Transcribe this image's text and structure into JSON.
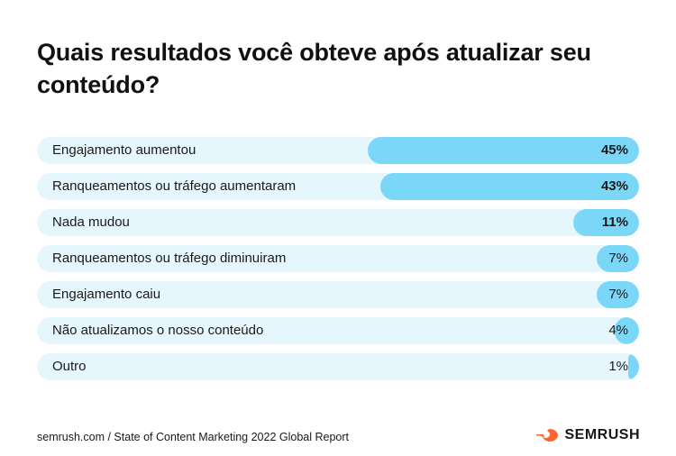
{
  "title": "Quais resultados você obteve após atualizar seu conteúdo?",
  "chart_data": {
    "type": "bar",
    "orientation": "horizontal",
    "title": "Quais resultados você obteve após atualizar seu conteúdo?",
    "categories": [
      "Engajamento aumentou",
      "Ranqueamentos ou tráfego aumentaram",
      "Nada mudou",
      "Ranqueamentos ou tráfego diminuiram",
      "Engajamento caiu",
      "Não atualizamos o nosso conteúdo",
      "Outro"
    ],
    "values": [
      45,
      43,
      11,
      7,
      7,
      4,
      1
    ],
    "value_labels": [
      "45%",
      "43%",
      "11%",
      "7%",
      "7%",
      "4%",
      "1%"
    ],
    "bold_value_labels": [
      true,
      true,
      true,
      false,
      false,
      false,
      false
    ],
    "xlim": [
      0,
      100
    ],
    "unit": "%",
    "grid": false,
    "bar_color": "#7ad7f8",
    "track_color": "#e6f6fd"
  },
  "footer": {
    "source": "semrush.com / State of Content Marketing 2022 Global Report",
    "brand": "SEMRUSH",
    "brand_icon": "semrush-flame-icon",
    "brand_color": "#ff642d"
  }
}
